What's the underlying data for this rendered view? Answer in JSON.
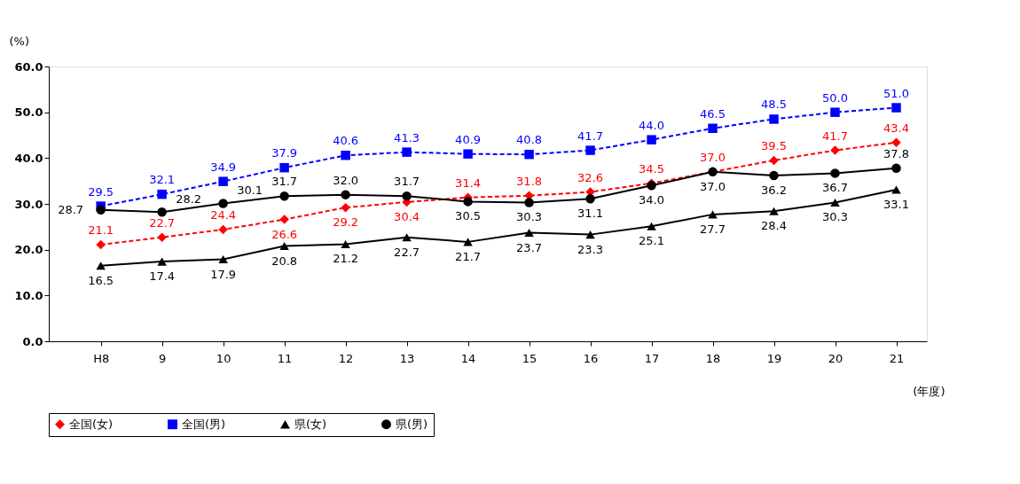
{
  "chart_data": {
    "type": "line",
    "ylabel": "(%)",
    "xlabel": "(年度)",
    "categories": [
      "H8",
      "9",
      "10",
      "11",
      "12",
      "13",
      "14",
      "15",
      "16",
      "17",
      "18",
      "19",
      "20",
      "21"
    ],
    "ylim": [
      0,
      60
    ],
    "yticks": [
      {
        "value": 0,
        "label": "0.0"
      },
      {
        "value": 10,
        "label": "10.0"
      },
      {
        "value": 20,
        "label": "20.0"
      },
      {
        "value": 30,
        "label": "30.0"
      },
      {
        "value": 40,
        "label": "40.0"
      },
      {
        "value": 50,
        "label": "50.0"
      },
      {
        "value": 60,
        "label": "60.0"
      }
    ],
    "grid": false,
    "legend": "bottom",
    "series": [
      {
        "name": "全国(女)",
        "color": "#ff0000",
        "marker": "diamond",
        "line_style": "dashed",
        "values": [
          21.1,
          22.7,
          24.4,
          26.6,
          29.2,
          30.4,
          31.4,
          31.8,
          32.6,
          34.5,
          37.0,
          39.5,
          41.7,
          43.4
        ],
        "value_labels": [
          "21.1",
          "22.7",
          "24.4",
          "26.6",
          "29.2",
          "30.4",
          "31.4",
          "31.8",
          "32.6",
          "34.5",
          "37.0",
          "39.5",
          "41.7",
          "43.4"
        ]
      },
      {
        "name": "全国(男)",
        "color": "#0000ff",
        "marker": "square",
        "line_style": "dashed",
        "values": [
          29.5,
          32.1,
          34.9,
          37.9,
          40.6,
          41.3,
          40.9,
          40.8,
          41.7,
          44.0,
          46.5,
          48.5,
          50.0,
          51.0
        ],
        "value_labels": [
          "29.5",
          "32.1",
          "34.9",
          "37.9",
          "40.6",
          "41.3",
          "40.9",
          "40.8",
          "41.7",
          "44.0",
          "46.5",
          "48.5",
          "50.0",
          "51.0"
        ]
      },
      {
        "name": "県(女)",
        "color": "#000000",
        "marker": "triangle",
        "line_style": "solid",
        "values": [
          16.5,
          17.4,
          17.9,
          20.8,
          21.2,
          22.7,
          21.7,
          23.7,
          23.3,
          25.1,
          27.7,
          28.4,
          30.3,
          33.1
        ],
        "value_labels": [
          "16.5",
          "17.4",
          "17.9",
          "20.8",
          "21.2",
          "22.7",
          "21.7",
          "23.7",
          "23.3",
          "25.1",
          "27.7",
          "28.4",
          "30.3",
          "33.1"
        ]
      },
      {
        "name": "県(男)",
        "color": "#000000",
        "marker": "circle",
        "line_style": "solid",
        "values": [
          28.7,
          28.2,
          30.1,
          31.7,
          32.0,
          31.7,
          30.5,
          30.3,
          31.1,
          34.0,
          37.0,
          36.2,
          36.7,
          37.8
        ],
        "value_labels": [
          "28.7",
          "28.2",
          "30.1",
          "31.7",
          "32.0",
          "31.7",
          "30.5",
          "30.3",
          "31.1",
          "34.0",
          "37.0",
          "36.2",
          "36.7",
          "37.8"
        ]
      }
    ]
  }
}
